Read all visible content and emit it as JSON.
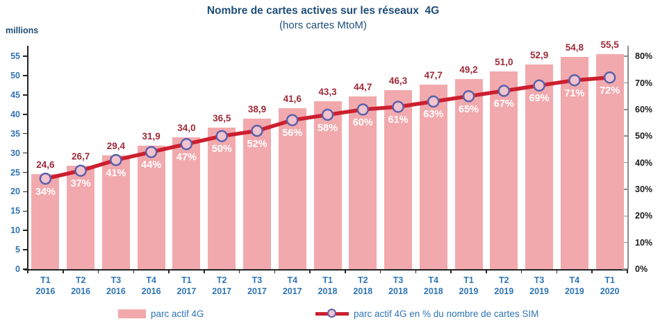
{
  "title": "Nombre de cartes actives sur les réseaux  4G",
  "subtitle": "(hors cartes MtoM)",
  "y_axis_label": "millions",
  "legend": {
    "bars": "parc actif 4G",
    "line": "parc actif 4G en % du nombre de cartes SIM"
  },
  "colors": {
    "bar": "#F2A9AD",
    "line": "#CB2030",
    "marker_fill": "#F0C3CE",
    "marker_border": "#5C60AA",
    "value_label": "#9E2A38",
    "title": "#1F4E79",
    "axis_blue": "#2E75B6",
    "axis_black": "#1A1A1A",
    "right_axis_line": "#8C8C8C"
  },
  "chart_data": {
    "type": "bar+line",
    "title": "Nombre de cartes actives sur les réseaux 4G (hors cartes MtoM)",
    "categories": [
      {
        "q": "T1",
        "year": "2016"
      },
      {
        "q": "T2",
        "year": "2016"
      },
      {
        "q": "T3",
        "year": "2016"
      },
      {
        "q": "T4",
        "year": "2016"
      },
      {
        "q": "T1",
        "year": "2017"
      },
      {
        "q": "T2",
        "year": "2017"
      },
      {
        "q": "T3",
        "year": "2017"
      },
      {
        "q": "T4",
        "year": "2017"
      },
      {
        "q": "T1",
        "year": "2018"
      },
      {
        "q": "T2",
        "year": "2018"
      },
      {
        "q": "T3",
        "year": "2018"
      },
      {
        "q": "T4",
        "year": "2018"
      },
      {
        "q": "T1",
        "year": "2019"
      },
      {
        "q": "T2",
        "year": "2019"
      },
      {
        "q": "T3",
        "year": "2019"
      },
      {
        "q": "T4",
        "year": "2019"
      },
      {
        "q": "T1",
        "year": "2020"
      }
    ],
    "series": [
      {
        "name": "parc actif 4G",
        "type": "bar",
        "unit": "millions",
        "values": [
          24.6,
          26.7,
          29.4,
          31.9,
          34.0,
          36.5,
          38.9,
          41.6,
          43.3,
          44.7,
          46.3,
          47.7,
          49.2,
          51.0,
          52.9,
          54.8,
          55.5
        ],
        "labels": [
          "24,6",
          "26,7",
          "29,4",
          "31,9",
          "34,0",
          "36,5",
          "38,9",
          "41,6",
          "43,3",
          "44,7",
          "46,3",
          "47,7",
          "49,2",
          "51,0",
          "52,9",
          "54,8",
          "55,5"
        ]
      },
      {
        "name": "parc actif 4G en % du nombre de cartes SIM",
        "type": "line",
        "unit": "%",
        "values": [
          34,
          37,
          41,
          44,
          47,
          50,
          52,
          56,
          58,
          60,
          61,
          63,
          65,
          67,
          69,
          71,
          72
        ],
        "labels": [
          "34%",
          "37%",
          "41%",
          "44%",
          "47%",
          "50%",
          "52%",
          "56%",
          "58%",
          "60%",
          "61%",
          "63%",
          "65%",
          "67%",
          "69%",
          "71%",
          "72%"
        ]
      }
    ],
    "left_axis": {
      "label": "millions",
      "ticks": [
        0,
        5,
        10,
        15,
        20,
        25,
        30,
        35,
        40,
        45,
        50,
        55
      ],
      "plot_max": 57
    },
    "right_axis": {
      "ticks": [
        0,
        10,
        20,
        30,
        40,
        50,
        60,
        70,
        80
      ],
      "suffix": "%",
      "max": 80,
      "aligns_with_left_value": 55
    },
    "grid": false,
    "legend_position": "bottom"
  }
}
